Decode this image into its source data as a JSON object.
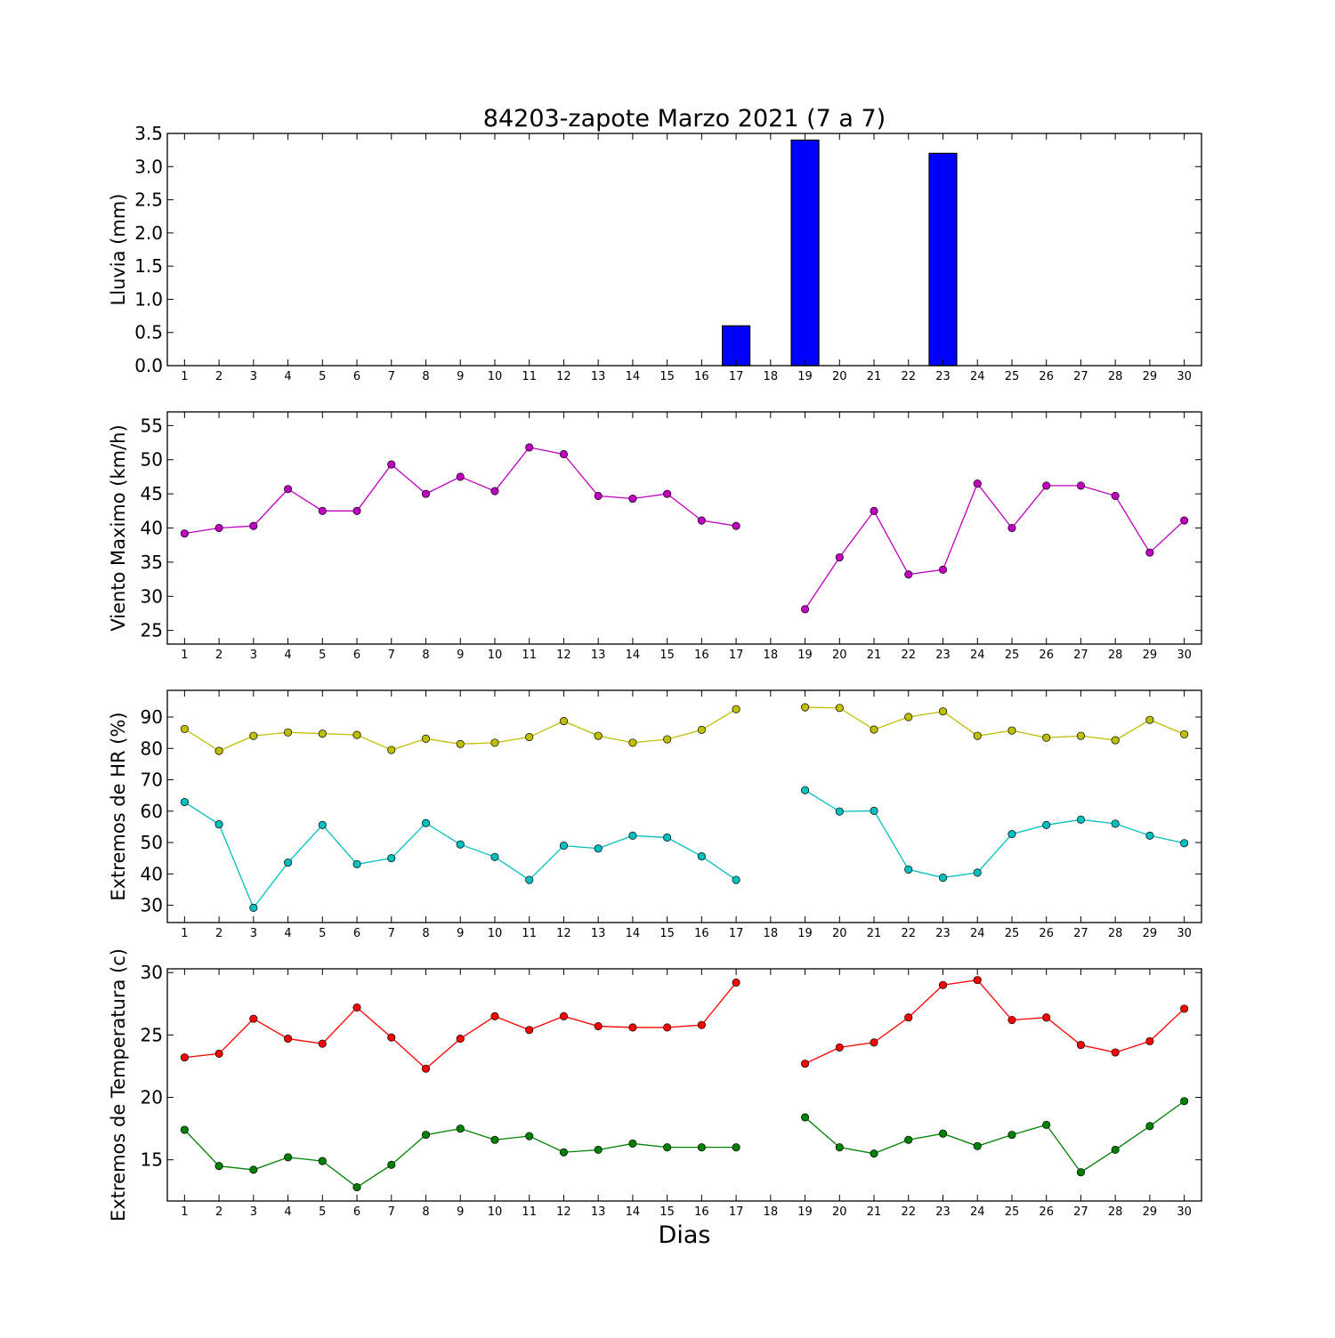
{
  "chart_data": [
    {
      "type": "bar",
      "title": "84203-zapote Marzo 2021  (7 a 7)",
      "xlabel": "",
      "ylabel": "Lluvia (mm)",
      "ylim": [
        0,
        3.5
      ],
      "yticks": [
        "0.0",
        "0.5",
        "1.0",
        "1.5",
        "2.0",
        "2.5",
        "3.0",
        "3.5"
      ],
      "x": [
        1,
        2,
        3,
        4,
        5,
        6,
        7,
        8,
        9,
        10,
        11,
        12,
        13,
        14,
        15,
        16,
        17,
        18,
        19,
        20,
        21,
        22,
        23,
        24,
        25,
        26,
        27,
        28,
        29,
        30
      ],
      "x_tick_labels": [
        "1",
        "2",
        "3",
        "4",
        "5",
        "6",
        "7",
        "8",
        "9",
        "10",
        "11",
        "12",
        "13",
        "14",
        "15",
        "16",
        "17",
        "18",
        "19",
        "20",
        "21",
        "22",
        "23",
        "24",
        "25",
        "26",
        "27",
        "28",
        "29",
        "30"
      ],
      "series": [
        {
          "color": "#0000ff",
          "values": [
            0,
            0,
            0,
            0,
            0,
            0,
            0,
            0,
            0,
            0,
            0,
            0,
            0,
            0,
            0,
            0,
            0.6,
            null,
            3.4,
            0,
            0,
            0,
            3.2,
            0,
            0,
            0,
            0,
            0,
            0,
            0
          ]
        }
      ],
      "grid": false
    },
    {
      "type": "line",
      "xlabel": "",
      "ylabel": "Viento Maximo (km/h)",
      "ylim": [
        23,
        57
      ],
      "yticks": [
        "25",
        "30",
        "35",
        "40",
        "45",
        "50",
        "55"
      ],
      "x": [
        1,
        2,
        3,
        4,
        5,
        6,
        7,
        8,
        9,
        10,
        11,
        12,
        13,
        14,
        15,
        16,
        17,
        18,
        19,
        20,
        21,
        22,
        23,
        24,
        25,
        26,
        27,
        28,
        29,
        30
      ],
      "x_tick_labels": [
        "1",
        "2",
        "3",
        "4",
        "5",
        "6",
        "7",
        "8",
        "9",
        "10",
        "11",
        "12",
        "13",
        "14",
        "15",
        "16",
        "17",
        "18",
        "19",
        "20",
        "21",
        "22",
        "23",
        "24",
        "25",
        "26",
        "27",
        "28",
        "29",
        "30"
      ],
      "series": [
        {
          "color": "#bf00bf",
          "values": [
            39.2,
            40.0,
            40.3,
            45.7,
            42.5,
            42.5,
            49.3,
            45.0,
            47.5,
            45.4,
            51.8,
            50.8,
            44.7,
            44.3,
            45.0,
            41.1,
            40.3,
            null,
            28.1,
            35.7,
            42.5,
            33.2,
            33.9,
            46.5,
            40.0,
            46.2,
            46.2,
            44.7,
            36.4,
            41.1
          ]
        }
      ],
      "grid": false
    },
    {
      "type": "line",
      "xlabel": "",
      "ylabel": "Extremos de HR (%)",
      "ylim": [
        24.5,
        98.5
      ],
      "yticks": [
        "30",
        "40",
        "50",
        "60",
        "70",
        "80",
        "90"
      ],
      "x": [
        1,
        2,
        3,
        4,
        5,
        6,
        7,
        8,
        9,
        10,
        11,
        12,
        13,
        14,
        15,
        16,
        17,
        18,
        19,
        20,
        21,
        22,
        23,
        24,
        25,
        26,
        27,
        28,
        29,
        30
      ],
      "x_tick_labels": [
        "1",
        "2",
        "3",
        "4",
        "5",
        "6",
        "7",
        "8",
        "9",
        "10",
        "11",
        "12",
        "13",
        "14",
        "15",
        "16",
        "17",
        "18",
        "19",
        "20",
        "21",
        "22",
        "23",
        "24",
        "25",
        "26",
        "27",
        "28",
        "29",
        "30"
      ],
      "series": [
        {
          "color": "#bfbf00",
          "values": [
            86.2,
            79.2,
            84.0,
            85.1,
            84.7,
            84.3,
            79.5,
            83.1,
            81.4,
            81.8,
            83.6,
            88.7,
            84.0,
            81.8,
            82.9,
            85.9,
            92.5,
            null,
            93.1,
            92.9,
            86.0,
            90.0,
            91.8,
            84.0,
            85.7,
            83.4,
            84.0,
            82.6,
            89.1,
            84.5
          ]
        },
        {
          "color": "#00bfbf",
          "values": [
            62.9,
            55.8,
            29.2,
            43.6,
            55.6,
            43.1,
            45.0,
            56.2,
            49.4,
            45.4,
            38.1,
            49.0,
            48.1,
            52.2,
            51.6,
            45.6,
            38.1,
            null,
            66.7,
            59.9,
            60.1,
            41.4,
            38.8,
            40.4,
            52.7,
            55.6,
            57.3,
            56.0,
            52.2,
            49.8
          ]
        }
      ],
      "grid": false
    },
    {
      "type": "line",
      "xlabel": "Dias",
      "ylabel": "Extremos de Temperatura (c)",
      "ylim": [
        11.7,
        30.3
      ],
      "yticks": [
        "15",
        "20",
        "25",
        "30"
      ],
      "x": [
        1,
        2,
        3,
        4,
        5,
        6,
        7,
        8,
        9,
        10,
        11,
        12,
        13,
        14,
        15,
        16,
        17,
        18,
        19,
        20,
        21,
        22,
        23,
        24,
        25,
        26,
        27,
        28,
        29,
        30
      ],
      "x_tick_labels": [
        "1",
        "2",
        "3",
        "4",
        "5",
        "6",
        "7",
        "8",
        "9",
        "10",
        "11",
        "12",
        "13",
        "14",
        "15",
        "16",
        "17",
        "18",
        "19",
        "20",
        "21",
        "22",
        "23",
        "24",
        "25",
        "26",
        "27",
        "28",
        "29",
        "30"
      ],
      "series": [
        {
          "color": "#ff0000",
          "values": [
            23.2,
            23.5,
            26.3,
            24.7,
            24.3,
            27.2,
            24.8,
            22.3,
            24.7,
            26.5,
            25.4,
            26.5,
            25.7,
            25.6,
            25.6,
            25.8,
            29.2,
            null,
            22.7,
            24.0,
            24.4,
            26.4,
            29.0,
            29.4,
            26.2,
            26.4,
            24.2,
            23.6,
            24.5,
            27.1
          ]
        },
        {
          "color": "#008000",
          "values": [
            17.4,
            14.5,
            14.2,
            15.2,
            14.9,
            12.8,
            14.6,
            17.0,
            17.5,
            16.6,
            16.9,
            15.6,
            15.8,
            16.3,
            16.0,
            16.0,
            16.0,
            null,
            18.4,
            16.0,
            15.5,
            16.6,
            17.1,
            16.1,
            17.0,
            17.8,
            14.0,
            15.8,
            17.7,
            19.7
          ]
        }
      ],
      "grid": false
    }
  ]
}
